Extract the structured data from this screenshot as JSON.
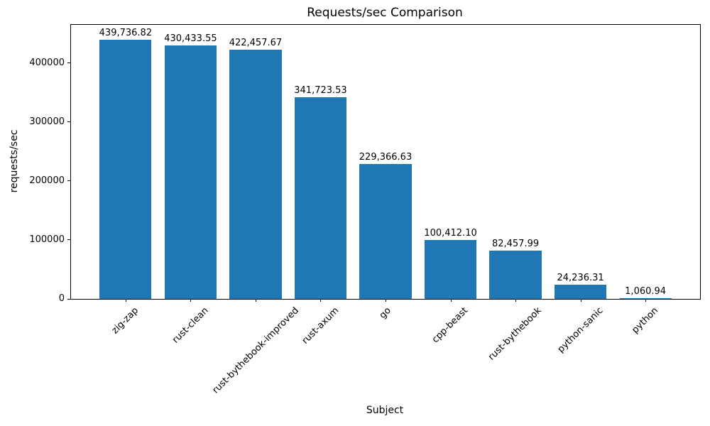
{
  "chart_data": {
    "type": "bar",
    "title": "Requests/sec Comparison",
    "xlabel": "Subject",
    "ylabel": "requests/sec",
    "categories": [
      "zig-zap",
      "rust-clean",
      "rust-bythebook-improved",
      "rust-axum",
      "go",
      "cpp-beast",
      "rust-bythebook",
      "python-sanic",
      "python"
    ],
    "values": [
      439736.82,
      430433.55,
      422457.67,
      341723.53,
      229366.63,
      100412.1,
      82457.99,
      24236.31,
      1060.94
    ],
    "value_labels": [
      "439,736.82",
      "430,433.55",
      "422,457.67",
      "341,723.53",
      "229,366.63",
      "100,412.10",
      "82,457.99",
      "24,236.31",
      "1,060.94"
    ],
    "yticks": [
      0,
      100000,
      200000,
      300000,
      400000
    ],
    "ytick_labels": [
      "0",
      "100000",
      "200000",
      "300000",
      "400000"
    ],
    "ylim": [
      0,
      465000
    ],
    "bar_color": "#1f77b4",
    "grid": false,
    "legend_position": "none"
  }
}
